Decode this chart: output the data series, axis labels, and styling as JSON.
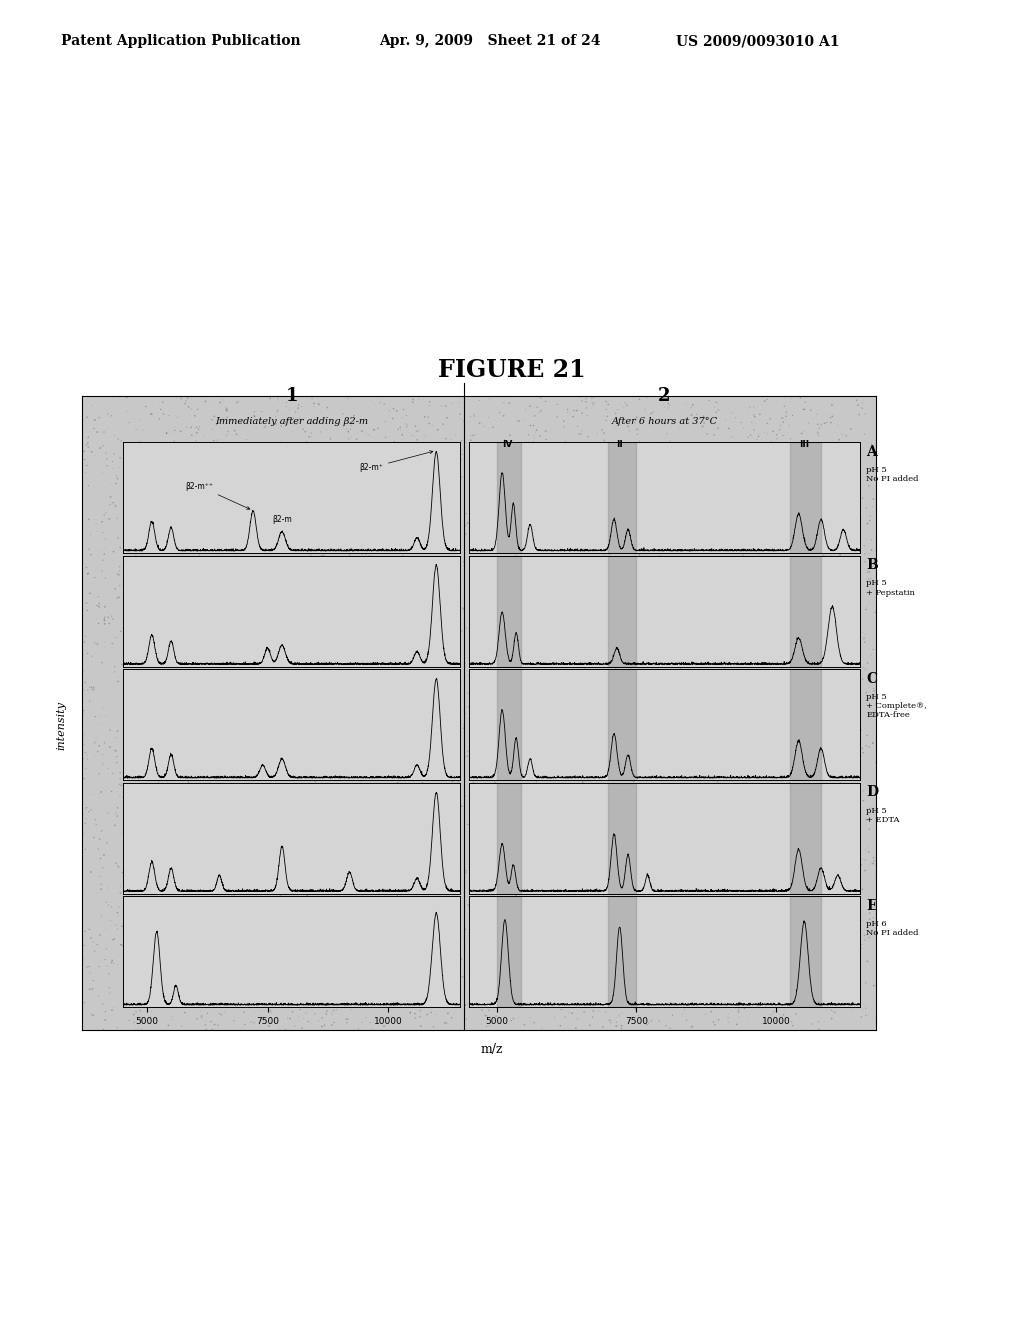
{
  "title": "FIGURE 21",
  "header_left": "Patent Application Publication",
  "header_mid": "Apr. 9, 2009   Sheet 21 of 24",
  "header_right": "US 2009/0093010 A1",
  "section1_label": "1",
  "section1_subtitle": "Immediately after adding β2-m",
  "section2_label": "2",
  "section2_subtitle": "After 6 hours at 37°C",
  "row_labels": [
    "A",
    "B",
    "C",
    "D",
    "E"
  ],
  "row_sublabels": [
    "pH 5\nNo PI added",
    "pH 5\n+ Pepstatin",
    "pH 5\n+ Complete®,\nEDTA-free",
    "pH 5\n+ EDTA",
    "pH 6\nNo PI added"
  ],
  "xlabel": "m/z",
  "ylabel": "intensity",
  "background_color": "#ffffff",
  "plot_bg": "#cccccc",
  "shade_color": "#aaaaaa",
  "speckle_bg": "#bbbbbb"
}
